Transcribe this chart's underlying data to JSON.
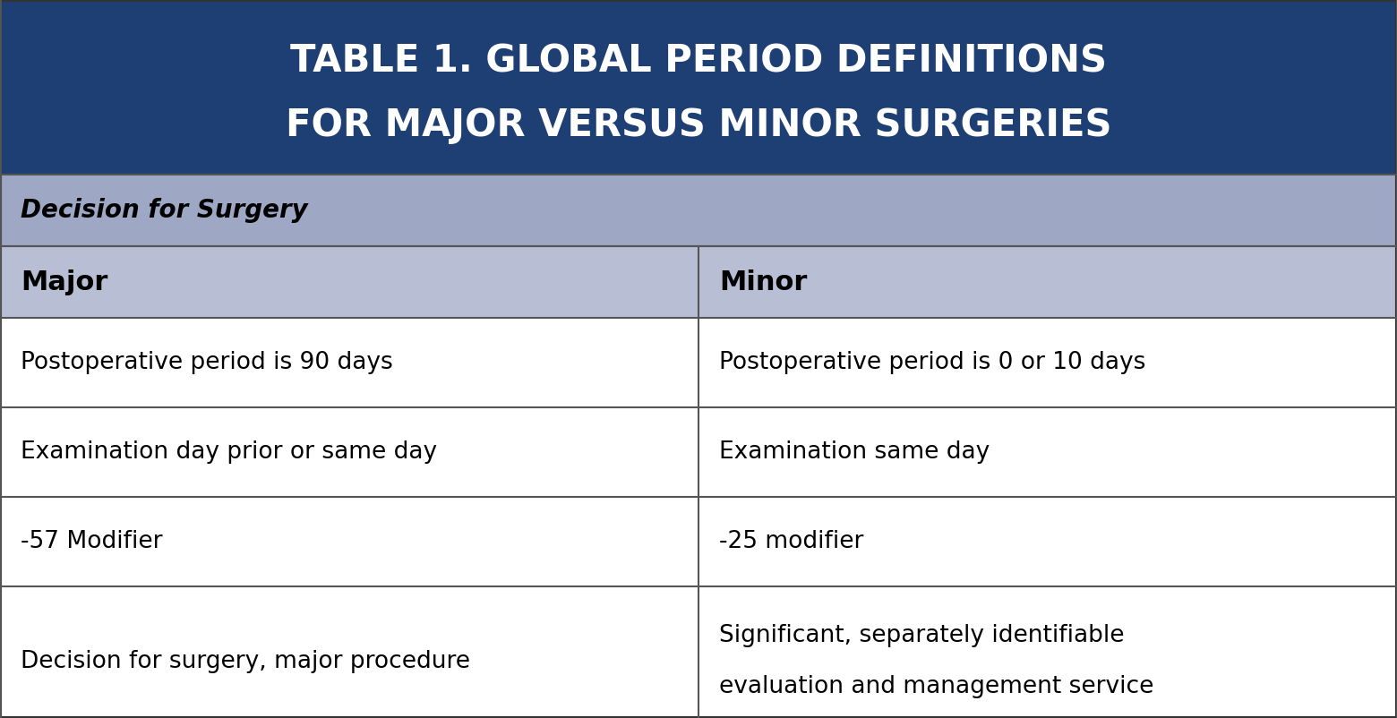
{
  "title_line1": "TABLE 1. GLOBAL PERIOD DEFINITIONS",
  "title_line2": "FOR MAJOR VERSUS MINOR SURGERIES",
  "title_bg_color": "#1e3f73",
  "title_text_color": "#ffffff",
  "section_header": "Decision for Surgery",
  "section_header_bg": "#9ea8c4",
  "col_header_bg": "#b8bfd4",
  "col_headers": [
    "Major",
    "Minor"
  ],
  "row_bg_white": "#ffffff",
  "row_bg_light": "#f5f5f5",
  "border_color": "#555555",
  "body_text_color": "#000000",
  "rows": [
    [
      "Postoperative period is 90 days",
      "Postoperative period is 0 or 10 days"
    ],
    [
      "Examination day prior or same day",
      "Examination same day"
    ],
    [
      "-57 Modifier",
      "-25 modifier"
    ],
    [
      "Decision for surgery, major procedure",
      "Significant, separately identifiable\nevaluation and management service"
    ]
  ],
  "fig_width": 15.6,
  "fig_height": 8.02,
  "dpi": 100
}
